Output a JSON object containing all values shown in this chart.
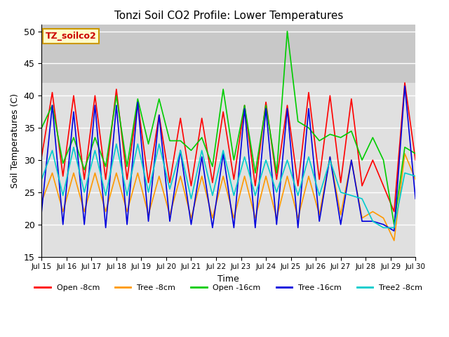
{
  "title": "Tonzi Soil CO2 Profile: Lower Temperatures",
  "xlabel": "Time",
  "ylabel": "Soil Temperatures (C)",
  "ylim": [
    15,
    51
  ],
  "yticks": [
    15,
    20,
    25,
    30,
    35,
    40,
    45,
    50
  ],
  "background_color": "#ffffff",
  "plot_bg_color": "#e0e0e0",
  "gray_band": [
    42,
    51
  ],
  "legend_box_color": "#ffffcc",
  "legend_box_edge": "#cc9900",
  "legend_label_color": "#cc0000",
  "series": {
    "Open -8cm": {
      "color": "#ff0000",
      "values": [
        30.5,
        40.5,
        27.5,
        40.0,
        27.0,
        40.0,
        27.0,
        41.0,
        27.0,
        39.0,
        26.5,
        37.0,
        26.5,
        36.5,
        26.0,
        36.5,
        26.5,
        37.5,
        27.0,
        38.5,
        26.0,
        39.0,
        27.0,
        38.5,
        26.0,
        40.5,
        27.0,
        40.0,
        26.5,
        39.5,
        26.0,
        30.0,
        26.0,
        22.0,
        42.0,
        30.0
      ]
    },
    "Tree -8cm": {
      "color": "#ff9900",
      "values": [
        23.5,
        28.0,
        22.0,
        28.0,
        22.0,
        28.0,
        22.0,
        28.0,
        22.0,
        28.0,
        21.5,
        27.5,
        21.5,
        27.5,
        21.0,
        27.5,
        21.0,
        27.5,
        21.0,
        27.5,
        21.0,
        27.5,
        21.0,
        27.5,
        21.0,
        27.5,
        21.5,
        30.5,
        21.5,
        30.0,
        21.0,
        22.0,
        21.0,
        17.5,
        31.0,
        27.0
      ]
    },
    "Open -16cm": {
      "color": "#00cc00",
      "values": [
        35.0,
        38.5,
        29.5,
        33.5,
        28.5,
        33.5,
        29.0,
        40.0,
        29.0,
        39.5,
        32.5,
        39.5,
        33.0,
        33.0,
        31.5,
        33.5,
        29.0,
        41.0,
        30.0,
        38.5,
        28.0,
        38.5,
        28.0,
        50.0,
        36.0,
        35.0,
        33.0,
        34.0,
        33.5,
        34.5,
        30.0,
        33.5,
        30.0,
        20.0,
        32.0,
        31.0
      ]
    },
    "Tree -16cm": {
      "color": "#0000dd",
      "values": [
        22.0,
        38.5,
        20.0,
        37.5,
        20.0,
        38.5,
        19.5,
        38.5,
        20.0,
        39.0,
        20.5,
        37.0,
        20.5,
        31.5,
        20.0,
        30.5,
        19.5,
        31.0,
        19.5,
        38.0,
        19.5,
        38.0,
        20.0,
        38.0,
        19.5,
        38.0,
        20.5,
        30.5,
        20.0,
        30.0,
        20.5,
        20.5,
        20.0,
        19.0,
        41.5,
        24.0
      ]
    },
    "Tree2 -8cm": {
      "color": "#00cccc",
      "values": [
        27.0,
        31.5,
        24.5,
        32.0,
        25.0,
        31.5,
        24.5,
        32.5,
        24.5,
        32.5,
        25.0,
        32.5,
        25.5,
        31.5,
        24.0,
        31.5,
        24.5,
        31.5,
        24.5,
        30.5,
        24.5,
        30.0,
        25.0,
        30.0,
        24.5,
        30.5,
        24.5,
        30.0,
        25.0,
        24.5,
        24.0,
        20.5,
        19.5,
        19.5,
        28.0,
        27.5
      ]
    }
  },
  "xtick_labels": [
    "Jul 15",
    "Jul 16",
    "Jul 17",
    "Jul 18",
    "Jul 19",
    "Jul 20",
    "Jul 21",
    "Jul 22",
    "Jul 23",
    "Jul 24",
    "Jul 25",
    "Jul 26",
    "Jul 27",
    "Jul 28",
    "Jul 29",
    "Jul 30"
  ],
  "n_points": 36,
  "label_box_text": "TZ_soilco2"
}
